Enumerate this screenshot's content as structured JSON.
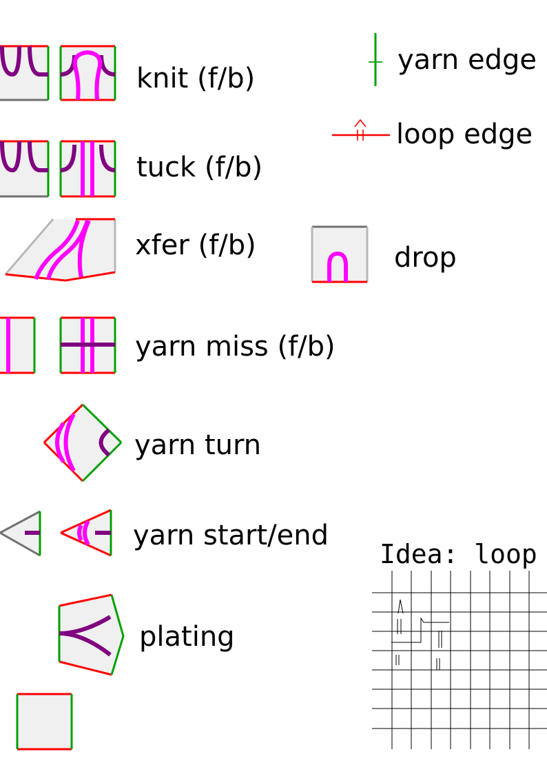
{
  "colors": {
    "fill": "#f0f0f0",
    "loop_edge": "#ff0000",
    "yarn_edge": "#00a000",
    "plain_edge": "#707070",
    "front_yarn": "#800080",
    "back_yarn": "#ff00ff",
    "sketch": "#000000"
  },
  "labels": {
    "knit": "knit (f/b)",
    "tuck": "tuck (f/b)",
    "xfer": "xfer (f/b)",
    "drop": "drop",
    "yarn_miss": "yarn miss (f/b)",
    "yarn_turn": "yarn turn",
    "yarn_start_end": "yarn start/end",
    "plating": "plating",
    "yarn_edge": "yarn edge",
    "loop_edge": "loop edge"
  },
  "note": {
    "title": "Idea: loop la"
  }
}
